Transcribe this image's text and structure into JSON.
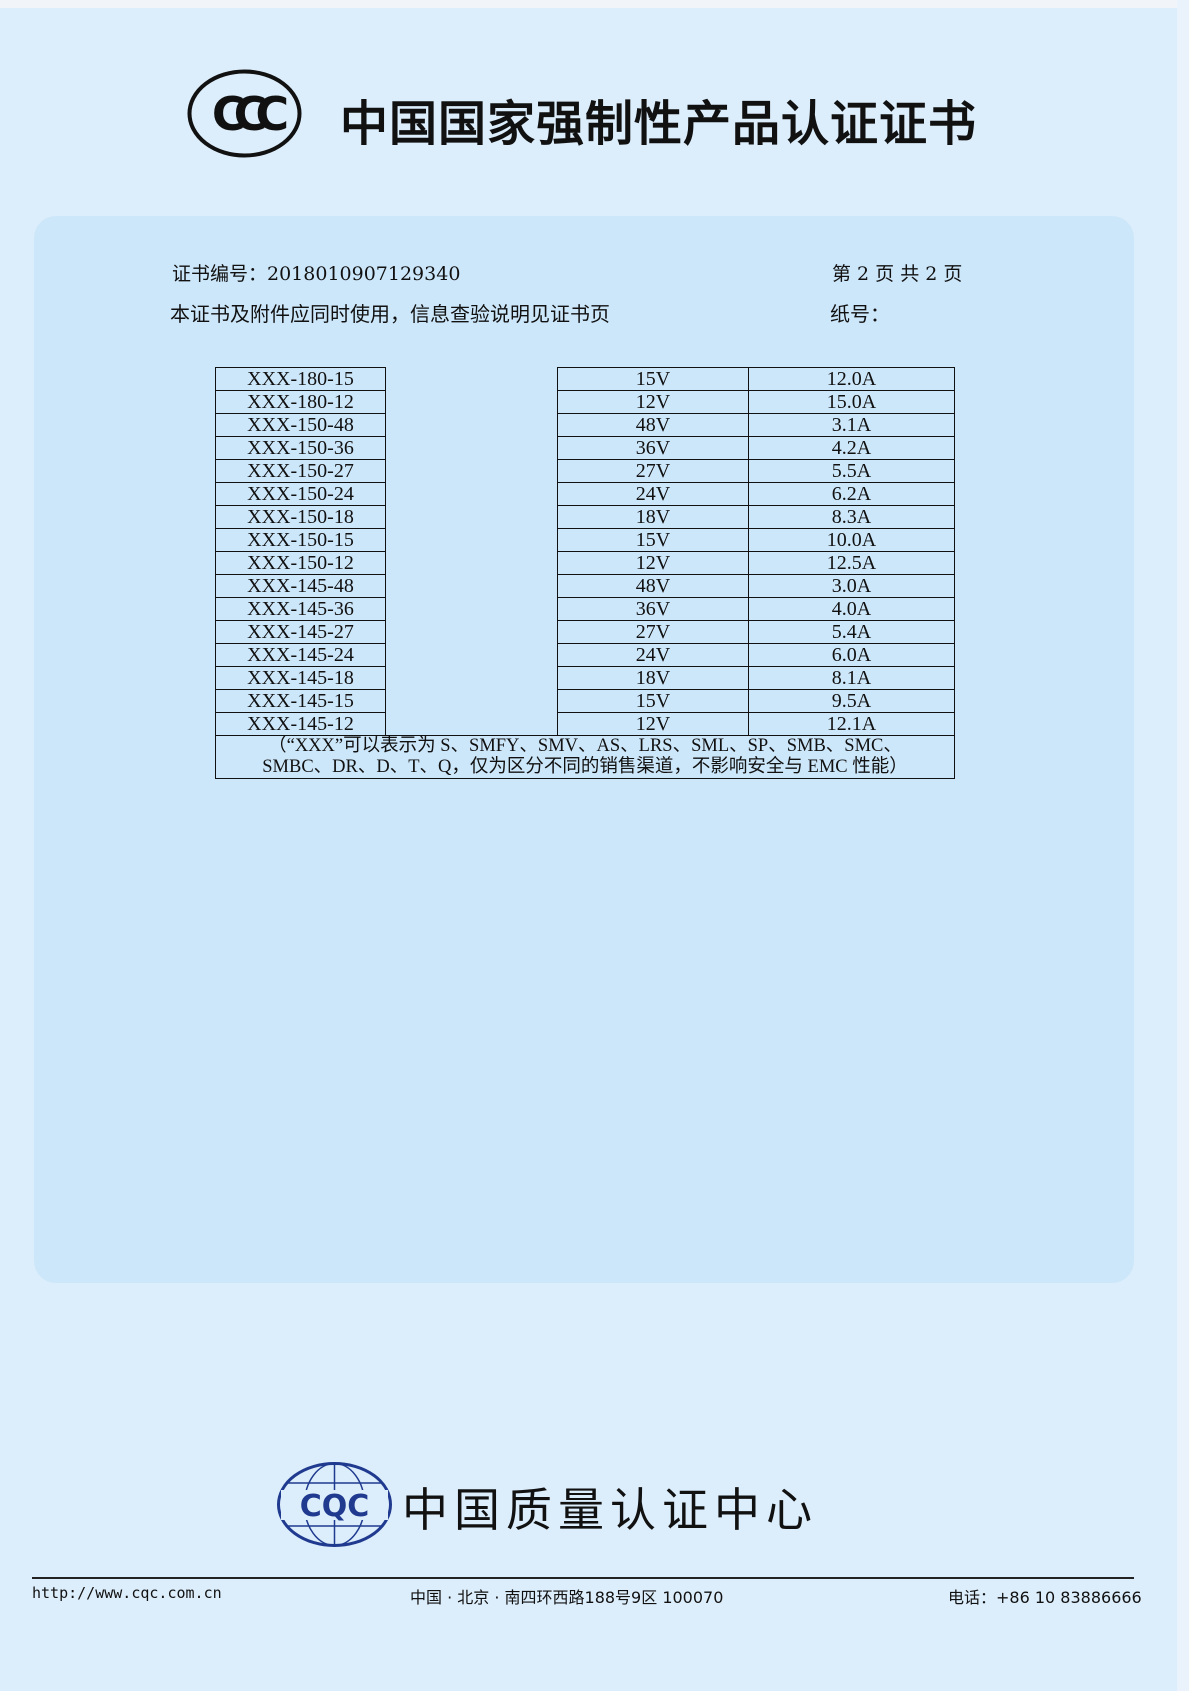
{
  "header": {
    "logo": "CCC",
    "title": "中国国家强制性产品认证证书"
  },
  "cert": {
    "number_label": "证书编号：2018010907129340",
    "page_info": "第 2 页  共 2 页",
    "usage_note": "本证书及附件应同时使用，信息查验说明见证书页",
    "paper_no_label": "纸号："
  },
  "table": {
    "rows": [
      {
        "model": "XXX-180-15",
        "voltage": "15V",
        "current": "12.0A"
      },
      {
        "model": "XXX-180-12",
        "voltage": "12V",
        "current": "15.0A"
      },
      {
        "model": "XXX-150-48",
        "voltage": "48V",
        "current": "3.1A"
      },
      {
        "model": "XXX-150-36",
        "voltage": "36V",
        "current": "4.2A"
      },
      {
        "model": "XXX-150-27",
        "voltage": "27V",
        "current": "5.5A"
      },
      {
        "model": "XXX-150-24",
        "voltage": "24V",
        "current": "6.2A"
      },
      {
        "model": "XXX-150-18",
        "voltage": "18V",
        "current": "8.3A"
      },
      {
        "model": "XXX-150-15",
        "voltage": "15V",
        "current": "10.0A"
      },
      {
        "model": "XXX-150-12",
        "voltage": "12V",
        "current": "12.5A"
      },
      {
        "model": "XXX-145-48",
        "voltage": "48V",
        "current": "3.0A"
      },
      {
        "model": "XXX-145-36",
        "voltage": "36V",
        "current": "4.0A"
      },
      {
        "model": "XXX-145-27",
        "voltage": "27V",
        "current": "5.4A"
      },
      {
        "model": "XXX-145-24",
        "voltage": "24V",
        "current": "6.0A"
      },
      {
        "model": "XXX-145-18",
        "voltage": "18V",
        "current": "8.1A"
      },
      {
        "model": "XXX-145-15",
        "voltage": "15V",
        "current": "9.5A"
      },
      {
        "model": "XXX-145-12",
        "voltage": "12V",
        "current": "12.1A"
      }
    ],
    "note_line1": "（“XXX”可以表示为 S、SMFY、SMV、AS、LRS、SML、SP、SMB、SMC、",
    "note_line2": "SMBC、DR、D、T、Q，仅为区分不同的销售渠道，不影响安全与 EMC 性能）"
  },
  "footer": {
    "logo": "CQC",
    "org_name": "中国质量认证中心",
    "url": "http://www.cqc.com.cn",
    "address": "中国 · 北京 · 南四环西路188号9区   100070",
    "phone": "电话：+86 10 83886666"
  },
  "colors": {
    "background": "#dcedfb",
    "panel": "#cde7fa",
    "cqc_blue": "#1f3a8f"
  }
}
